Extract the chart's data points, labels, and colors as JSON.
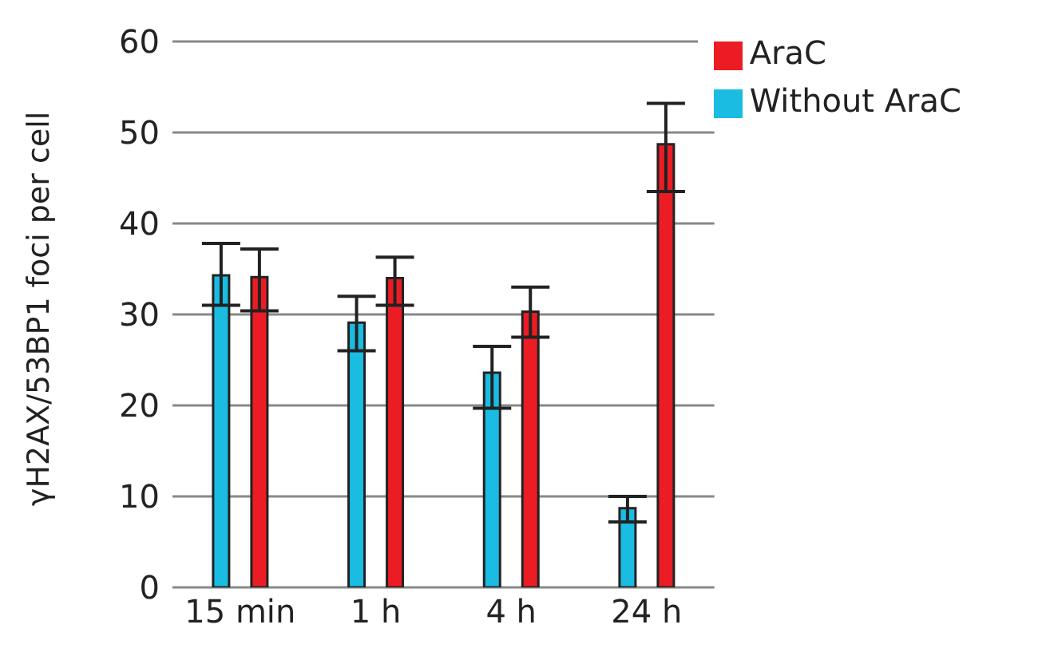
{
  "chart_data": {
    "type": "bar",
    "ylabel": "γH2AX/53BP1 foci per cell",
    "categories": [
      "15 min",
      "1 h",
      "4 h",
      "24 h"
    ],
    "series": [
      {
        "name": "Without AraC",
        "color": "#1abce2",
        "values": [
          34.3,
          29.1,
          23.6,
          8.7
        ],
        "errors": [
          [
            31,
            37.8
          ],
          [
            26,
            32
          ],
          [
            19.7,
            26.5
          ],
          [
            7.2,
            10
          ]
        ]
      },
      {
        "name": "AraC",
        "color": "#ec1c24",
        "values": [
          34.1,
          34,
          30.3,
          48.7
        ],
        "errors": [
          [
            30.4,
            37.2
          ],
          [
            31,
            36.3
          ],
          [
            27.5,
            33
          ],
          [
            43.5,
            53.2
          ]
        ]
      }
    ],
    "ylim": [
      0,
      60
    ],
    "yticks": [
      0,
      10,
      20,
      30,
      40,
      50,
      60
    ],
    "grid": "y",
    "legend": "top right"
  }
}
